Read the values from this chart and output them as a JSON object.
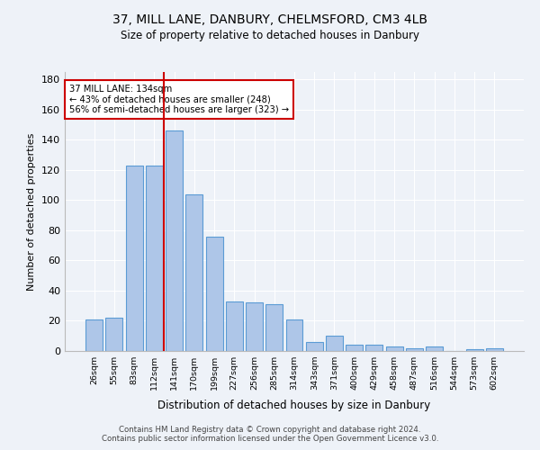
{
  "title1": "37, MILL LANE, DANBURY, CHELMSFORD, CM3 4LB",
  "title2": "Size of property relative to detached houses in Danbury",
  "xlabel": "Distribution of detached houses by size in Danbury",
  "ylabel": "Number of detached properties",
  "categories": [
    "26sqm",
    "55sqm",
    "83sqm",
    "112sqm",
    "141sqm",
    "170sqm",
    "199sqm",
    "227sqm",
    "256sqm",
    "285sqm",
    "314sqm",
    "343sqm",
    "371sqm",
    "400sqm",
    "429sqm",
    "458sqm",
    "487sqm",
    "516sqm",
    "544sqm",
    "573sqm",
    "602sqm"
  ],
  "values": [
    21,
    22,
    123,
    123,
    146,
    104,
    76,
    33,
    32,
    31,
    21,
    6,
    10,
    4,
    4,
    3,
    2,
    3,
    0,
    1,
    2
  ],
  "bar_color": "#aec6e8",
  "bar_edge_color": "#5b9bd5",
  "vline_color": "#cc0000",
  "vline_index": 3.5,
  "annotation_text": "37 MILL LANE: 134sqm\n← 43% of detached houses are smaller (248)\n56% of semi-detached houses are larger (323) →",
  "annotation_box_color": "#ffffff",
  "annotation_box_edge": "#cc0000",
  "ylim": [
    0,
    185
  ],
  "yticks": [
    0,
    20,
    40,
    60,
    80,
    100,
    120,
    140,
    160,
    180
  ],
  "footer1": "Contains HM Land Registry data © Crown copyright and database right 2024.",
  "footer2": "Contains public sector information licensed under the Open Government Licence v3.0.",
  "bg_color": "#eef2f8"
}
